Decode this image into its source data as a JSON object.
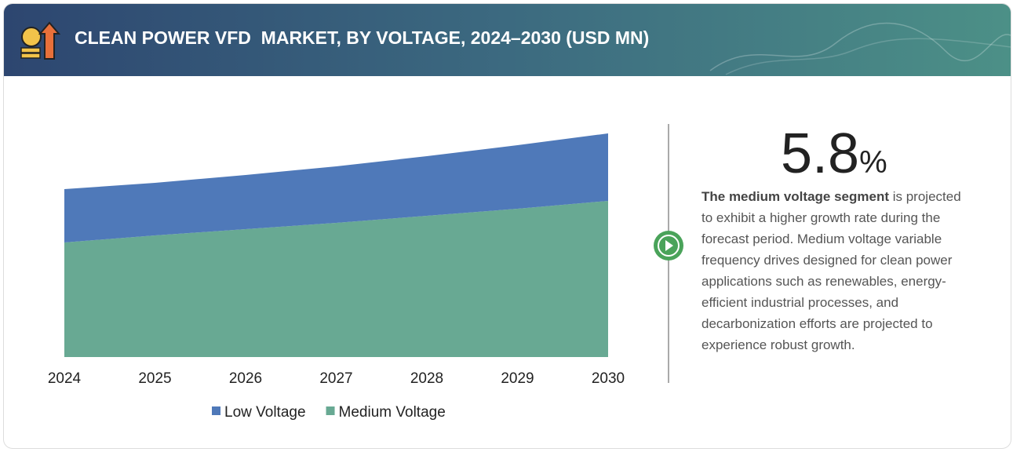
{
  "chart_data": {
    "type": "area",
    "title": "CLEAN POWER VFD  MARKET, BY VOLTAGE, 2024–2030 (USD MN)",
    "categories": [
      "2024",
      "2025",
      "2026",
      "2027",
      "2028",
      "2029",
      "2030"
    ],
    "series": [
      {
        "name": "Low Voltage",
        "color": "#4f79b9",
        "values": [
          68,
          67,
          69,
          72,
          76,
          81,
          86
        ]
      },
      {
        "name": "Medium Voltage",
        "color": "#68a993",
        "values": [
          146,
          155,
          163,
          171,
          180,
          189,
          199
        ]
      }
    ]
  },
  "highlight": {
    "number": "5.8",
    "unit": "%"
  },
  "description": {
    "bold": "The medium voltage segment",
    "text": " is projected to exhibit a higher growth rate during the forecast period. Medium voltage variable frequency drives designed for clean power applications such as renewables, energy-efficient industrial processes, and decarbonization efforts are projected to experience robust growth."
  }
}
